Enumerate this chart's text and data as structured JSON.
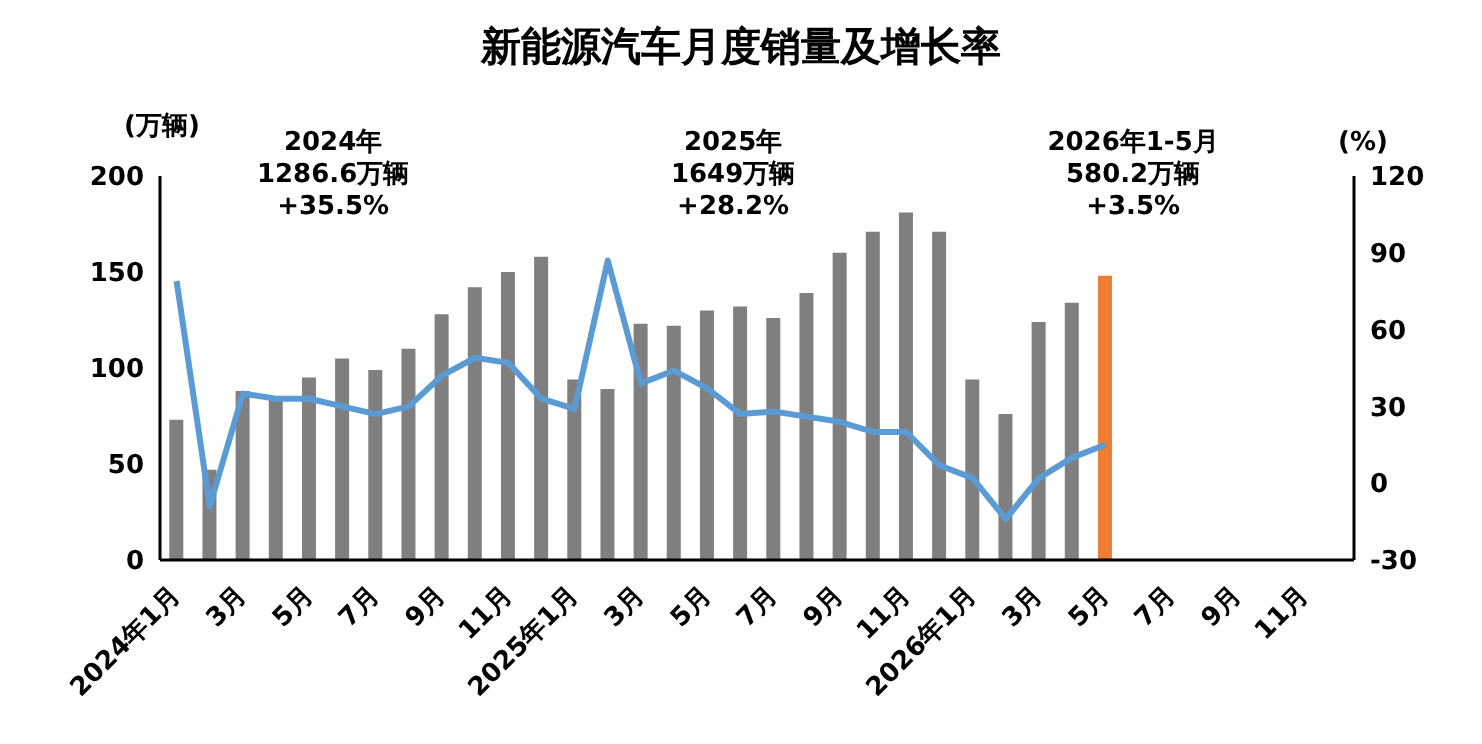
{
  "chart_data": {
    "type": "bar",
    "title": "新能源汽车月度销量及增长率",
    "ylabel": "(万辆)",
    "y2label": "(%)",
    "categories": [
      "2024年1月",
      null,
      "3月",
      null,
      "5月",
      null,
      "7月",
      null,
      "9月",
      null,
      "11月",
      null,
      "2025年1月",
      null,
      "3月",
      null,
      "5月",
      null,
      "7月",
      null,
      "9月",
      null,
      "11月",
      null,
      "2026年1月",
      null,
      "3月",
      null,
      "5月",
      null,
      "7月",
      null,
      "9月",
      null,
      "11月",
      null
    ],
    "series": [
      {
        "colors": [
          "#7f7f7f",
          "#7f7f7f",
          "#7f7f7f",
          "#7f7f7f",
          "#7f7f7f",
          "#7f7f7f",
          "#7f7f7f",
          "#7f7f7f",
          "#7f7f7f",
          "#7f7f7f",
          "#7f7f7f",
          "#7f7f7f",
          "#7f7f7f",
          "#7f7f7f",
          "#7f7f7f",
          "#7f7f7f",
          "#7f7f7f",
          "#7f7f7f",
          "#7f7f7f",
          "#7f7f7f",
          "#7f7f7f",
          "#7f7f7f",
          "#7f7f7f",
          "#7f7f7f",
          "#7f7f7f",
          "#7f7f7f",
          "#7f7f7f",
          "#7f7f7f",
          "#ed7d31",
          null,
          null,
          null,
          null,
          null,
          null,
          null
        ],
        "values": [
          73,
          47,
          88,
          85,
          95,
          105,
          99,
          110,
          128,
          142,
          150,
          158,
          94,
          89,
          123,
          122,
          130,
          132,
          126,
          139,
          160,
          171,
          181,
          171,
          94,
          76,
          124,
          134,
          148,
          null,
          null,
          null,
          null,
          null,
          null,
          null
        ]
      },
      {
        "type": "line",
        "axis": "y2",
        "color": "#5b9bd5",
        "values": [
          79,
          -9,
          35,
          33,
          33,
          30,
          27,
          30,
          42,
          49,
          47,
          33,
          29,
          87,
          39,
          44,
          37,
          27,
          28,
          26,
          24,
          20,
          20,
          7,
          2,
          -14,
          2,
          10,
          15,
          null,
          null,
          null,
          null,
          null,
          null,
          null
        ]
      }
    ],
    "ylim": [
      0,
      200
    ],
    "yticks": [
      0,
      50,
      100,
      150,
      200
    ],
    "y2lim": [
      -30,
      120
    ],
    "y2ticks": [
      -30,
      0,
      30,
      60,
      90,
      120
    ],
    "annotations": [
      "2024年\n1286.6万辆\n+35.5%",
      "2025年\n1649万辆\n+28.2%",
      "2026年1-5月\n580.2万辆\n+3.5%"
    ],
    "grid": false,
    "legend": false,
    "marker": "none",
    "line_style": "solid"
  }
}
